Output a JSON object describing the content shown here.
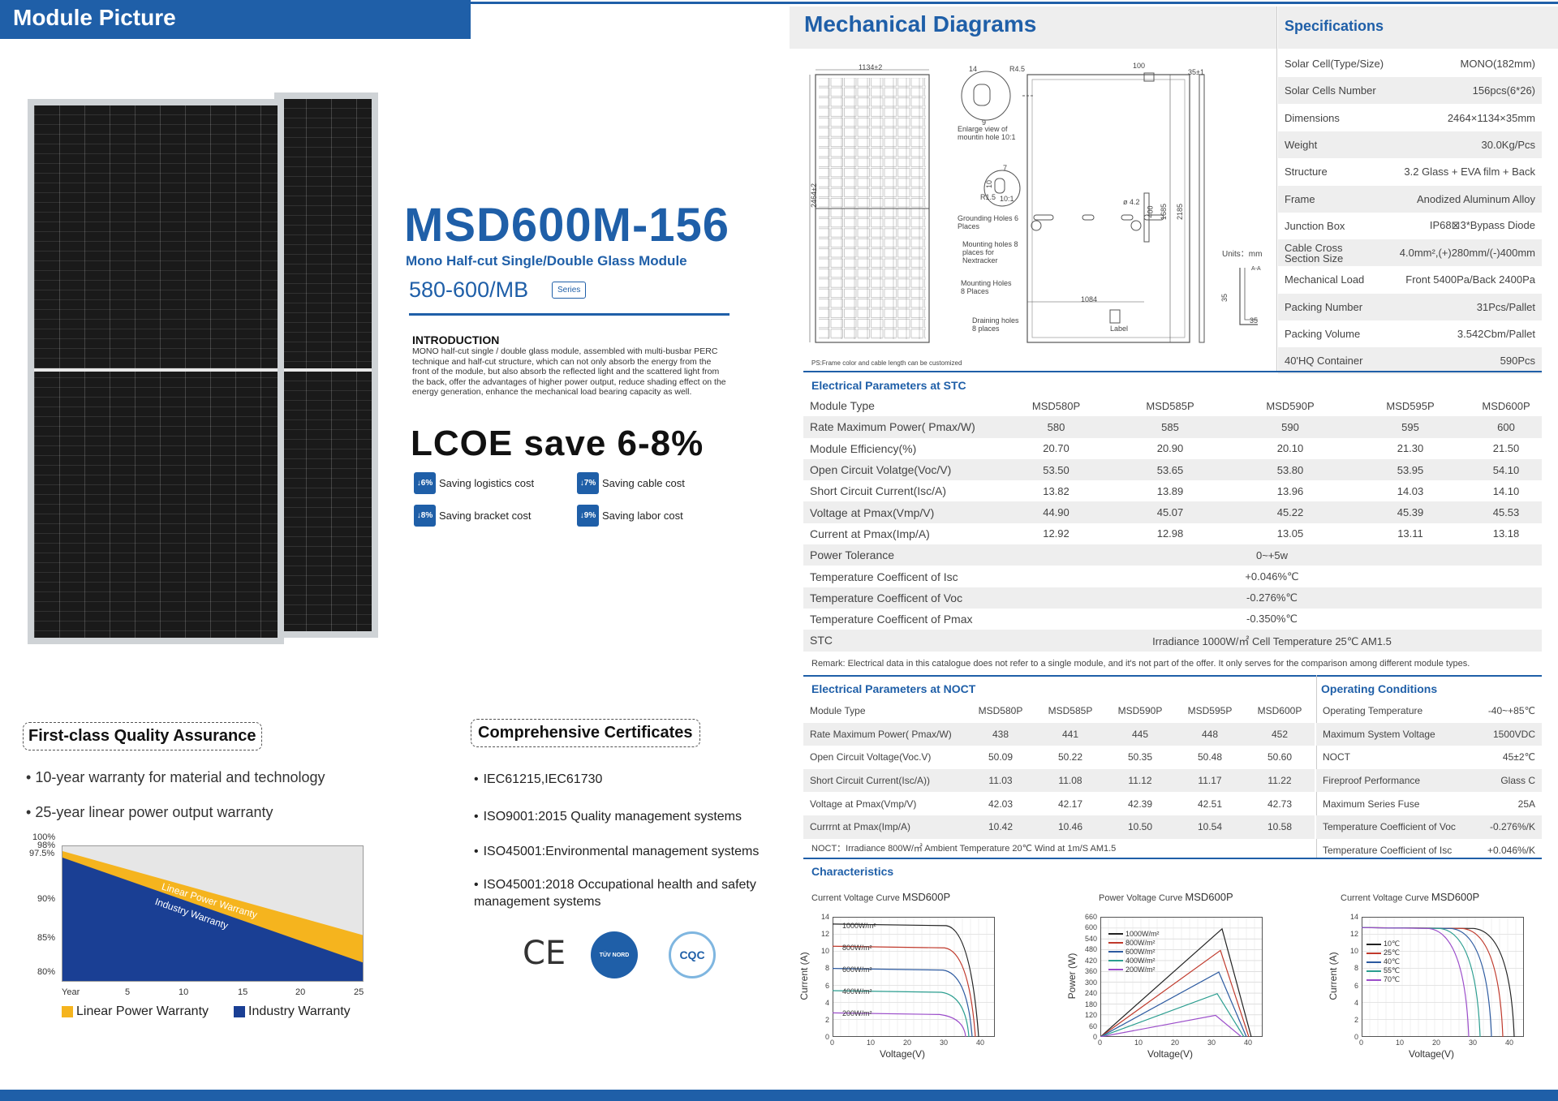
{
  "module_picture": {
    "title": "Module Picture"
  },
  "model": {
    "name": "MSD600M-156",
    "subtitle": "Mono Half-cut Single/Double Glass Module",
    "range": "580-600/MB",
    "series_badge": "Series"
  },
  "intro": {
    "heading": "INTRODUCTION",
    "text": "MONO half-cut single / double glass module, assembled with multi-busbar PERC technique and half-cut structure, which can not only absorb the energy from the front of the module, but also absorb the reflected light and the scattered light from the back, offer the advantages of higher power output, reduce shading effect on the energy generation, enhance the mechanical load bearing capacity as well."
  },
  "lcoe": {
    "headline": "LCOE save 6-8%",
    "items": [
      {
        "badge": "↓6%",
        "label": "Saving logistics cost"
      },
      {
        "badge": "↓7%",
        "label": "Saving cable cost"
      },
      {
        "badge": "↓8%",
        "label": "Saving bracket cost"
      },
      {
        "badge": "↓9%",
        "label": "Saving labor cost"
      }
    ]
  },
  "quality": {
    "title": "First-class Quality Assurance",
    "bullets": [
      "10-year warranty for material and technology",
      "25-year linear power output warranty"
    ],
    "chart": {
      "y_ticks": [
        "100%",
        "98%",
        "97.5%",
        "90%",
        "85%",
        "80%"
      ],
      "x_ticks": [
        "Year",
        "5",
        "10",
        "15",
        "20",
        "25"
      ],
      "band_labels": [
        "Linear Power Warranty",
        "Industry Warranty"
      ],
      "legend": [
        "Linear Power Warranty",
        "Industry Warranty"
      ],
      "colors": {
        "linear": "#f5b41e",
        "industry": "#1a3f94"
      }
    }
  },
  "certificates": {
    "title": "Comprehensive Certificates",
    "items": [
      "IEC61215,IEC61730",
      "ISO9001:2015 Quality management systems",
      "ISO45001:Environmental management systems",
      "ISO45001:2018 Occupational health and safety management systems"
    ],
    "logos": [
      "CE",
      "TÜV NORD",
      "CQC"
    ]
  },
  "mechanical": {
    "title": "Mechanical Diagrams",
    "labels": {
      "width": "1134±2",
      "height": "2464±2",
      "depth": "35±1",
      "d100": "100",
      "r45": "R4.5",
      "d14": "14",
      "d9": "9",
      "enlarge": "Enlarge view of mountin  hole 10:1",
      "d7": "7",
      "d10": "10",
      "r15": "R1.5",
      "ratio": "10:1",
      "grounding": "Grounding Holes 6 Places",
      "mounting8": "Mounting holes 8 places for Nextracker",
      "mounting": "Mounting Holes 8 Places",
      "draining": "Draining holes 8 places",
      "d42": "ø 4.2",
      "d400": "400",
      "d1685": "1685",
      "d2185": "2185",
      "d1084": "1084",
      "label": "Label",
      "units": "Units：mm",
      "aa": "A-A",
      "d35a": "35",
      "d35b": "35"
    },
    "note": "PS:Frame color and cable length can be customized"
  },
  "specs": {
    "title": "Specifications",
    "rows": [
      {
        "k": "Solar Cell(Type/Size)",
        "v": "MONO(182mm)"
      },
      {
        "k": "Solar Cells Number",
        "v": "156pcs(6*26)"
      },
      {
        "k": "Dimensions",
        "v": "2464×1134×35mm"
      },
      {
        "k": "Weight",
        "v": "30.0Kg/Pcs"
      },
      {
        "k": "Structure",
        "v": "3.2 Glass + EVA film + Back"
      },
      {
        "k": "Frame",
        "v": "Anodized Aluminum Alloy"
      },
      {
        "k": "Junction Box",
        "v": "IP68⊠3*Bypass Diode"
      },
      {
        "k": "Cable Cross Section Size",
        "v": "4.0mm²,(+)280mm/(-)400mm"
      },
      {
        "k": "Mechanical Load",
        "v": "Front 5400Pa/Back 2400Pa"
      },
      {
        "k": "Packing Number",
        "v": "31Pcs/Pallet"
      },
      {
        "k": "Packing Volume",
        "v": "3.542Cbm/Pallet"
      },
      {
        "k": "40'HQ Container",
        "v": "590Pcs"
      }
    ]
  },
  "stc": {
    "title": "Electrical Parameters at STC",
    "header": [
      "Module Type",
      "MSD580P",
      "MSD585P",
      "MSD590P",
      "MSD595P",
      "MSD600P"
    ],
    "rows": [
      [
        "Rate Maximum Power( Pmax/W)",
        "580",
        "585",
        "590",
        "595",
        "600"
      ],
      [
        "Module Efficiency(%)",
        "20.70",
        "20.90",
        "20.10",
        "21.30",
        "21.50"
      ],
      [
        "Open Circuit Volatge(Voc/V)",
        "53.50",
        "53.65",
        "53.80",
        "53.95",
        "54.10"
      ],
      [
        "Short Circuit Current(Isc/A)",
        "13.82",
        "13.89",
        "13.96",
        "14.03",
        "14.10"
      ],
      [
        "Voltage at Pmax(Vmp/V)",
        "44.90",
        "45.07",
        "45.22",
        "45.39",
        "45.53"
      ],
      [
        "Current at Pmax(Imp/A)",
        "12.92",
        "12.98",
        "13.05",
        "13.11",
        "13.18"
      ]
    ],
    "span_rows": [
      [
        "Power Tolerance",
        "0~+5w"
      ],
      [
        "Temperature Coefficent of Isc",
        "+0.046%℃"
      ],
      [
        "Temperature Coefficent of Voc",
        "-0.276%℃"
      ],
      [
        "Temperature Coefficent of Pmax",
        "-0.350%℃"
      ],
      [
        "STC",
        "Irradiance 1000W/㎡  Cell Temperature 25℃  AM1.5"
      ]
    ],
    "remark": "Remark: Electrical data in this catalogue does not refer to a single module, and it's not part of the offer. It only serves for the comparison among different module types."
  },
  "noct": {
    "title": "Electrical Parameters at NOCT",
    "header": [
      "Module Type",
      "MSD580P",
      "MSD585P",
      "MSD590P",
      "MSD595P",
      "MSD600P"
    ],
    "rows": [
      [
        "Rate Maximum Power( Pmax/W)",
        "438",
        "441",
        "445",
        "448",
        "452"
      ],
      [
        "Open Circuit Voltage(Voc.V)",
        "50.09",
        "50.22",
        "50.35",
        "50.48",
        "50.60"
      ],
      [
        "Short Circuit Current(Isc/A))",
        "11.03",
        "11.08",
        "11.12",
        "11.17",
        "11.22"
      ],
      [
        "Voltage at Pmax(Vmp/V)",
        "42.03",
        "42.17",
        "42.39",
        "42.51",
        "42.73"
      ],
      [
        "Currrnt at Pmax(Imp/A)",
        "10.42",
        "10.46",
        "10.50",
        "10.54",
        "10.58"
      ]
    ],
    "note": "NOCT：Irradiance 800W/㎡  Ambient Temperature 20℃  Wind at 1m/S  AM1.5"
  },
  "operating": {
    "title": "Operating Conditions",
    "rows": [
      {
        "k": "Operating Temperature",
        "v": "-40~+85℃"
      },
      {
        "k": "Maximum System Voltage",
        "v": "1500VDC"
      },
      {
        "k": "NOCT",
        "v": "45±2℃"
      },
      {
        "k": "Fireproof  Performance",
        "v": "Glass C"
      },
      {
        "k": "Maximum Series Fuse",
        "v": "25A"
      },
      {
        "k": "Temperature Coefficient of Voc",
        "v": "-0.276%/K"
      },
      {
        "k": "Temperature Coefficient of Isc",
        "v": "+0.046%/K"
      }
    ]
  },
  "characteristics": {
    "title": "Characteristics",
    "charts": [
      {
        "title": "Current Voltage Curve",
        "model": "MSD600P",
        "ylabel": "Current (A)",
        "xlabel": "Voltage(V)",
        "y_ticks": [
          "14",
          "12",
          "10",
          "8",
          "6",
          "4",
          "2",
          "0"
        ],
        "x_ticks": [
          "0",
          "10",
          "20",
          "30",
          "40"
        ],
        "series": [
          "1000W/m²",
          "800W/m²",
          "600W/m²",
          "400W/m²",
          "200W/m²"
        ]
      },
      {
        "title": "Power Voltage Curve",
        "model": "MSD600P",
        "ylabel": "Power (W)",
        "xlabel": "Voltage(V)",
        "y_ticks": [
          "660",
          "600",
          "540",
          "480",
          "420",
          "360",
          "300",
          "240",
          "180",
          "120",
          "60",
          "0"
        ],
        "x_ticks": [
          "0",
          "10",
          "20",
          "30",
          "40"
        ],
        "series": [
          "1000W/m²",
          "800W/m²",
          "600W/m²",
          "400W/m²",
          "200W/m²"
        ]
      },
      {
        "title": "Current Voltage Curve",
        "model": "MSD600P",
        "ylabel": "Current (A)",
        "xlabel": "Voltage(V)",
        "y_ticks": [
          "14",
          "12",
          "10",
          "8",
          "6",
          "4",
          "2",
          "0"
        ],
        "x_ticks": [
          "0",
          "10",
          "20",
          "30",
          "40"
        ],
        "series": [
          "10℃",
          "25℃",
          "40℃",
          "55℃",
          "70℃"
        ]
      }
    ],
    "colors": [
      "#222222",
      "#c0392b",
      "#2c5aa0",
      "#2a9d8f",
      "#9b4dca"
    ]
  }
}
